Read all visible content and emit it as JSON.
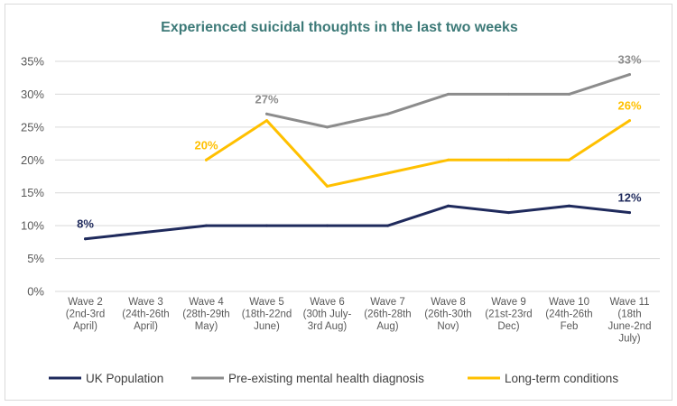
{
  "chart_data": {
    "type": "line",
    "title": "Experienced suicidal thoughts in the last two weeks",
    "xlabel": "",
    "ylabel": "",
    "ylim": [
      0,
      35
    ],
    "yticks": [
      "0%",
      "5%",
      "10%",
      "15%",
      "20%",
      "25%",
      "30%",
      "35%"
    ],
    "ytick_values": [
      0,
      5,
      10,
      15,
      20,
      25,
      30,
      35
    ],
    "grid": true,
    "legend_position": "bottom",
    "categories": [
      [
        "Wave 2",
        "(2nd-3rd",
        "April)"
      ],
      [
        "Wave 3",
        "(24th-26th",
        "April)"
      ],
      [
        "Wave 4",
        "(28th-29th",
        "May)"
      ],
      [
        "Wave 5",
        "(18th-22nd",
        "June)"
      ],
      [
        "Wave 6",
        "(30th July-",
        "3rd Aug)"
      ],
      [
        "Wave 7",
        "(26th-28th",
        "Aug)"
      ],
      [
        "Wave 8",
        "(26th-30th",
        "Nov)"
      ],
      [
        "Wave 9",
        "(21st-23rd",
        "Dec)"
      ],
      [
        "Wave 10",
        "(24th-26th",
        "Feb"
      ],
      [
        "Wave 11",
        "(18th",
        "June-2nd",
        "July)"
      ]
    ],
    "series": [
      {
        "name": "UK Population",
        "color": "#1f2a5c",
        "values": [
          8,
          9,
          10,
          10,
          10,
          10,
          13,
          12,
          13,
          12
        ],
        "labels": [
          {
            "index": 0,
            "text": "8%",
            "pos": "above"
          },
          {
            "index": 9,
            "text": "12%",
            "pos": "above"
          }
        ]
      },
      {
        "name": "Pre-existing mental health diagnosis",
        "color": "#8c8c8c",
        "values": [
          null,
          null,
          null,
          27,
          25,
          27,
          30,
          30,
          30,
          33
        ],
        "labels": [
          {
            "index": 3,
            "text": "27%",
            "pos": "above"
          },
          {
            "index": 9,
            "text": "33%",
            "pos": "above"
          }
        ]
      },
      {
        "name": "Long-term conditions",
        "color": "#ffc000",
        "values": [
          null,
          null,
          20,
          26,
          16,
          18,
          20,
          20,
          20,
          26
        ],
        "labels": [
          {
            "index": 2,
            "text": "20%",
            "pos": "above"
          },
          {
            "index": 9,
            "text": "26%",
            "pos": "above"
          }
        ]
      }
    ]
  }
}
